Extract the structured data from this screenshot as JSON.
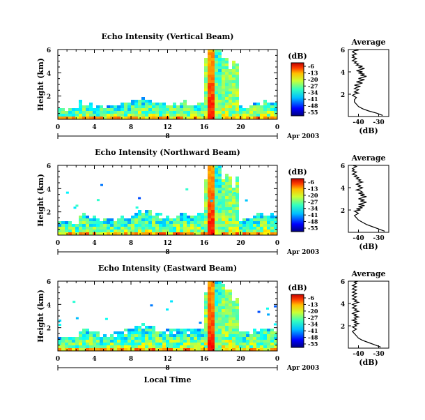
{
  "figure": {
    "date_label": "Apr 2003",
    "xlabel": "Local Time",
    "colorbar_unit": "(dB)",
    "colorbar_ticks": [
      "-6",
      "-13",
      "-20",
      "-27",
      "-34",
      "-41",
      "-48",
      "-55"
    ]
  },
  "panels": [
    {
      "title": "Echo Intensity (Vertical Beam)",
      "ylabel": "Height (km)",
      "day_label": "8",
      "avg_title": "Average",
      "avg_xlabel": "(dB)",
      "echo_top_km": 1.5,
      "sparse_features": false
    },
    {
      "title": "Echo Intensity (Northward Beam)",
      "ylabel": "Height (km)",
      "day_label": "8",
      "avg_title": "Average",
      "avg_xlabel": "(dB)",
      "echo_top_km": 1.8,
      "sparse_features": true
    },
    {
      "title": "Echo Intensity (Eastward Beam)",
      "ylabel": "Height (km)",
      "day_label": "8",
      "avg_title": "Average",
      "avg_xlabel": "(dB)",
      "echo_top_km": 1.9,
      "sparse_features": true
    }
  ],
  "chart_data": [
    {
      "type": "heatmap",
      "title": "Echo Intensity (Vertical Beam)",
      "ylabel": "Height (km)",
      "xlabel": "",
      "xlim": [
        0,
        24
      ],
      "ylim": [
        0,
        6
      ],
      "xticks": [
        "0",
        "4",
        "8",
        "12",
        "16",
        "20",
        "0"
      ],
      "yticks": [
        "2",
        "4",
        "6"
      ],
      "color_range_db": [
        -55,
        -6
      ],
      "convective_event_hours": [
        16.2,
        17.8
      ]
    },
    {
      "type": "line",
      "title": "Average",
      "xlabel": "(dB)",
      "xlim": [
        -45,
        -25
      ],
      "ylim": [
        0,
        6
      ],
      "xticks": [
        "-40",
        "-30"
      ],
      "yticks": [
        "2",
        "4",
        "6"
      ],
      "series": [
        {
          "x": [
            -28,
            -31,
            -35,
            -38,
            -40,
            -41,
            -42,
            -42,
            -41,
            -43,
            -42,
            -40,
            -42,
            -41,
            -40,
            -42,
            -41,
            -39,
            -42,
            -40,
            -38,
            -41,
            -39,
            -37,
            -40,
            -38,
            -36,
            -39,
            -37,
            -40,
            -38,
            -41,
            -39,
            -37,
            -40,
            -38,
            -41,
            -40,
            -42,
            -41,
            -43,
            -42,
            -41,
            -43,
            -42,
            -43,
            -41,
            -42,
            -43,
            -42,
            -40,
            -41
          ],
          "y": [
            0.1,
            0.3,
            0.5,
            0.7,
            0.9,
            1.1,
            1.3,
            1.5,
            1.7,
            1.9,
            2.0,
            2.1,
            2.2,
            2.3,
            2.4,
            2.5,
            2.6,
            2.7,
            2.8,
            2.9,
            3.0,
            3.1,
            3.2,
            3.3,
            3.4,
            3.5,
            3.6,
            3.7,
            3.8,
            3.9,
            4.0,
            4.1,
            4.2,
            4.3,
            4.4,
            4.5,
            4.6,
            4.7,
            4.8,
            4.9,
            5.0,
            5.1,
            5.2,
            5.3,
            5.4,
            5.5,
            5.6,
            5.7,
            5.8,
            5.9,
            5.95,
            6.0
          ]
        }
      ]
    },
    {
      "type": "heatmap",
      "title": "Echo Intensity (Northward Beam)",
      "ylabel": "Height (km)",
      "xlabel": "",
      "xlim": [
        0,
        24
      ],
      "ylim": [
        0,
        6
      ],
      "xticks": [
        "0",
        "4",
        "8",
        "12",
        "16",
        "20",
        "0"
      ],
      "yticks": [
        "2",
        "4",
        "6"
      ],
      "color_range_db": [
        -55,
        -6
      ],
      "convective_event_hours": [
        16.2,
        17.8
      ]
    },
    {
      "type": "line",
      "title": "Average",
      "xlabel": "(dB)",
      "xlim": [
        -45,
        -25
      ],
      "ylim": [
        0,
        6
      ],
      "xticks": [
        "-40",
        "-30"
      ],
      "yticks": [
        "2",
        "4",
        "6"
      ],
      "series": [
        {
          "x": [
            -27,
            -30,
            -33,
            -36,
            -38,
            -40,
            -41,
            -42,
            -40,
            -42,
            -39,
            -41,
            -38,
            -40,
            -37,
            -40,
            -38,
            -36,
            -39,
            -37,
            -40,
            -38,
            -36,
            -39,
            -37,
            -40,
            -38,
            -39,
            -41,
            -39,
            -38,
            -40,
            -39,
            -41,
            -40,
            -38,
            -40,
            -39,
            -41,
            -40,
            -42,
            -41,
            -43,
            -42,
            -41,
            -43,
            -42,
            -43,
            -42,
            -41,
            -42,
            -41
          ],
          "y": [
            0.1,
            0.3,
            0.5,
            0.7,
            0.9,
            1.1,
            1.3,
            1.5,
            1.7,
            1.9,
            2.0,
            2.1,
            2.2,
            2.3,
            2.4,
            2.5,
            2.6,
            2.7,
            2.8,
            2.9,
            3.0,
            3.1,
            3.2,
            3.3,
            3.4,
            3.5,
            3.6,
            3.7,
            3.8,
            3.9,
            4.0,
            4.1,
            4.2,
            4.3,
            4.4,
            4.5,
            4.6,
            4.7,
            4.8,
            4.9,
            5.0,
            5.1,
            5.2,
            5.3,
            5.4,
            5.5,
            5.6,
            5.7,
            5.8,
            5.9,
            5.95,
            6.0
          ]
        }
      ]
    },
    {
      "type": "heatmap",
      "title": "Echo Intensity (Eastward Beam)",
      "ylabel": "Height (km)",
      "xlabel": "Local Time",
      "xlim": [
        0,
        24
      ],
      "ylim": [
        0,
        6
      ],
      "xticks": [
        "0",
        "4",
        "8",
        "12",
        "16",
        "20",
        "0"
      ],
      "yticks": [
        "2",
        "4",
        "6"
      ],
      "color_range_db": [
        -55,
        -6
      ],
      "convective_event_hours": [
        16.2,
        17.8
      ]
    },
    {
      "type": "line",
      "title": "Average",
      "xlabel": "(dB)",
      "xlim": [
        -45,
        -25
      ],
      "ylim": [
        0,
        6
      ],
      "xticks": [
        "-40",
        "-30"
      ],
      "yticks": [
        "2",
        "4",
        "6"
      ],
      "series": [
        {
          "x": [
            -29,
            -32,
            -35,
            -38,
            -40,
            -41,
            -42,
            -43,
            -41,
            -43,
            -41,
            -42,
            -40,
            -42,
            -41,
            -43,
            -41,
            -42,
            -40,
            -42,
            -41,
            -43,
            -42,
            -40,
            -42,
            -41,
            -43,
            -42,
            -41,
            -43,
            -42,
            -40,
            -42,
            -41,
            -43,
            -42,
            -41,
            -43,
            -42,
            -41,
            -43,
            -42,
            -41,
            -43,
            -42,
            -41,
            -43,
            -42,
            -41,
            -42,
            -41,
            -42
          ],
          "y": [
            0.1,
            0.3,
            0.5,
            0.7,
            0.9,
            1.1,
            1.3,
            1.5,
            1.7,
            1.9,
            2.0,
            2.1,
            2.2,
            2.3,
            2.4,
            2.5,
            2.6,
            2.7,
            2.8,
            2.9,
            3.0,
            3.1,
            3.2,
            3.3,
            3.4,
            3.5,
            3.6,
            3.7,
            3.8,
            3.9,
            4.0,
            4.1,
            4.2,
            4.3,
            4.4,
            4.5,
            4.6,
            4.7,
            4.8,
            4.9,
            5.0,
            5.1,
            5.2,
            5.3,
            5.4,
            5.5,
            5.6,
            5.7,
            5.8,
            5.9,
            5.95,
            6.0
          ]
        }
      ]
    }
  ]
}
